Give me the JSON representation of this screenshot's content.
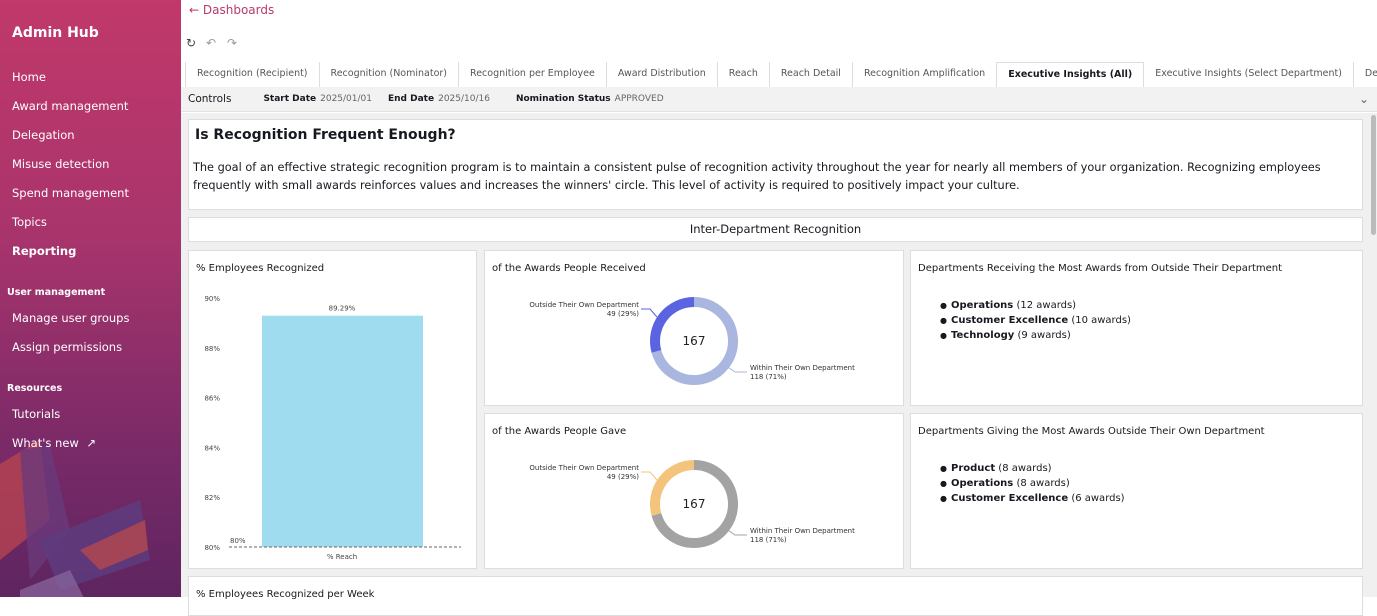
{
  "sidebar": {
    "brand": "Admin Hub",
    "items": [
      "Home",
      "Award management",
      "Delegation",
      "Misuse detection",
      "Spend management",
      "Topics",
      "Reporting"
    ],
    "user_management": {
      "title": "User management",
      "items": [
        "Manage user groups",
        "Assign permissions"
      ]
    },
    "resources": {
      "title": "Resources",
      "items": [
        "Tutorials",
        "What's new"
      ]
    }
  },
  "header": {
    "back_label": "Dashboards"
  },
  "tabs": [
    "Recognition (Recipient)",
    "Recognition (Nominator)",
    "Recognition per Employee",
    "Award Distribution",
    "Reach",
    "Reach Detail",
    "Recognition Amplification",
    "Executive Insights (All)",
    "Executive Insights (Select Department)",
    "Definitions"
  ],
  "active_tab": "Executive Insights (All)",
  "controls": {
    "label": "Controls",
    "start_label": "Start Date",
    "start": "2025/01/01",
    "end_label": "End Date",
    "end": "2025/10/16",
    "status_label": "Nomination Status",
    "status": "APPROVED"
  },
  "intro": {
    "title": "Is Recognition Frequent Enough?",
    "body": "The goal of an effective strategic recognition program is to maintain a consistent pulse of recognition activity throughout the year for nearly all members of your organization. Recognizing employees frequently with small awards reinforces values and increases the winners' circle. This level of activity is required to positively impact your culture."
  },
  "section_title": "Inter-Department Recognition",
  "bottom_title": "% Employees Recognized per Week",
  "chart_data": [
    {
      "type": "bar",
      "title": "% Employees Recognized",
      "categories": [
        "% Reach"
      ],
      "values": [
        89.29
      ],
      "data_labels": [
        "89.29%"
      ],
      "ylim": [
        80,
        90
      ],
      "yticks": [
        "80%",
        "82%",
        "84%",
        "86%",
        "88%",
        "90%"
      ],
      "baseline_label": "80%",
      "color": "#a0dcf0"
    },
    {
      "type": "pie",
      "title": "of the Awards People Received",
      "total": "167",
      "slices": [
        {
          "label": "Outside Their Own Department",
          "value": 49,
          "text": "49 (29%)",
          "color": "#5a63e0"
        },
        {
          "label": "Within Their Own Department",
          "value": 118,
          "text": "118 (71%)",
          "color": "#a9b6df"
        }
      ]
    },
    {
      "type": "pie",
      "title": "of the Awards People Gave",
      "total": "167",
      "slices": [
        {
          "label": "Outside Their Own Department",
          "value": 49,
          "text": "49 (29%)",
          "color": "#f5c47c"
        },
        {
          "label": "Within Their Own Department",
          "value": 118,
          "text": "118 (71%)",
          "color": "#a3a3a3"
        }
      ]
    }
  ],
  "receiving": {
    "title": "Departments Receiving the Most Awards from Outside Their Department",
    "items": [
      {
        "name": "Operations",
        "count": "(12 awards)"
      },
      {
        "name": "Customer Excellence",
        "count": "(10 awards)"
      },
      {
        "name": "Technology",
        "count": "(9 awards)"
      }
    ]
  },
  "giving": {
    "title": "Departments Giving the Most Awards Outside Their Own Department",
    "items": [
      {
        "name": "Product",
        "count": "(8 awards)"
      },
      {
        "name": "Operations",
        "count": "(8 awards)"
      },
      {
        "name": "Customer Excellence",
        "count": "(6 awards)"
      }
    ]
  }
}
